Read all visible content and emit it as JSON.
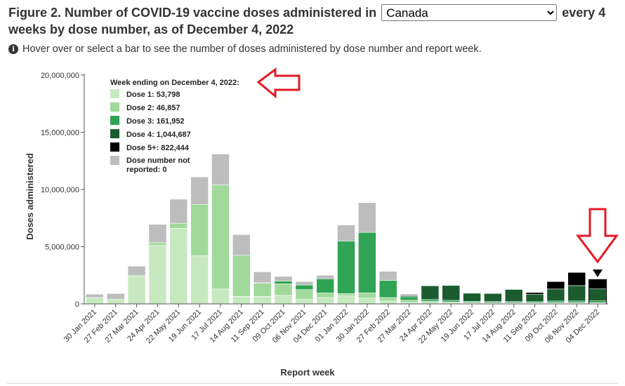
{
  "header": {
    "title_part1": "Figure 2. Number of COVID-19 vaccine doses administered in",
    "title_part2": "every 4 weeks by dose number, as of December 4, 2022",
    "region_select": {
      "selected": "Canada"
    }
  },
  "info": {
    "icon": "info-icon",
    "text": "Hover over or select a bar to see the number of doses administered by dose number and report week."
  },
  "annotations": {
    "left_arrow_icon": "red-left-arrow-icon",
    "down_arrow_icon": "red-down-arrow-icon",
    "highlight_marker_icon": "black-triangle-marker-icon",
    "arrow_color": "#e31b23"
  },
  "chart_data": {
    "type": "bar",
    "stacked": true,
    "xlabel": "Report week",
    "ylabel": "Doses administered",
    "ylim": [
      0,
      20000000
    ],
    "yticks": [
      {
        "value": 0,
        "label": "0"
      },
      {
        "value": 5000000,
        "label": "5,000,000"
      },
      {
        "value": 10000000,
        "label": "10,000,000"
      },
      {
        "value": 15000000,
        "label": "15,000,000"
      },
      {
        "value": 20000000,
        "label": "20,000,000"
      }
    ],
    "grid": false,
    "categories": [
      "30 Jan 2021",
      "27 Feb 2021",
      "27 Mar 2021",
      "24 Apr 2021",
      "22 May 2021",
      "19 Jun 2021",
      "17 Jul 2021",
      "14 Aug 2021",
      "11 Sep 2021",
      "09 Oct 2021",
      "06 Nov 2021",
      "04 Dec 2021",
      "01 Jan 2022",
      "30 Jan 2022",
      "27 Feb 2022",
      "27 Mar 2022",
      "24 Apr 2022",
      "22 May 2022",
      "19 Jun 2022",
      "17 Jul 2022",
      "14 Aug 2022",
      "11 Sep 2022",
      "09 Oct 2022",
      "06 Nov 2022",
      "04 Dec 2022"
    ],
    "series": [
      {
        "name": "Dose 1",
        "color": "#c7e9c0",
        "values": [
          550000,
          400000,
          2400000,
          5100000,
          6600000,
          4200000,
          1300000,
          650000,
          650000,
          750000,
          400000,
          550000,
          700000,
          500000,
          250000,
          120000,
          80000,
          60000,
          50000,
          50000,
          50000,
          50000,
          50000,
          50000,
          53798
        ]
      },
      {
        "name": "Dose 2",
        "color": "#a1d99b",
        "values": [
          0,
          0,
          100000,
          250000,
          450000,
          4500000,
          9100000,
          3600000,
          1150000,
          1000000,
          850000,
          400000,
          200000,
          450000,
          300000,
          200000,
          150000,
          100000,
          80000,
          60000,
          60000,
          50000,
          50000,
          50000,
          46857
        ]
      },
      {
        "name": "Dose 3",
        "color": "#31a354",
        "values": [
          0,
          0,
          0,
          0,
          0,
          0,
          0,
          0,
          50000,
          250000,
          400000,
          1250000,
          4600000,
          5300000,
          1500000,
          300000,
          150000,
          150000,
          100000,
          100000,
          100000,
          100000,
          150000,
          150000,
          161952
        ]
      },
      {
        "name": "Dose 4",
        "color": "#1a5c30",
        "values": [
          0,
          0,
          0,
          0,
          0,
          0,
          0,
          0,
          0,
          0,
          0,
          0,
          0,
          0,
          0,
          100000,
          1200000,
          1300000,
          700000,
          700000,
          1050000,
          650000,
          1050000,
          1350000,
          1044687
        ]
      },
      {
        "name": "Dose 5+",
        "color": "#000000",
        "values": [
          0,
          0,
          0,
          0,
          0,
          0,
          0,
          0,
          0,
          0,
          0,
          0,
          0,
          0,
          0,
          0,
          0,
          0,
          0,
          0,
          0,
          150000,
          650000,
          1150000,
          822444
        ]
      },
      {
        "name": "Dose number not reported",
        "color": "#bdbdbd",
        "values": [
          300000,
          500000,
          800000,
          1600000,
          2100000,
          2400000,
          2700000,
          1800000,
          950000,
          400000,
          300000,
          300000,
          1400000,
          2600000,
          800000,
          150000,
          0,
          0,
          0,
          0,
          0,
          0,
          0,
          0,
          0
        ]
      }
    ],
    "legend": {
      "placement": "top-left",
      "title": "Week ending on December 4, 2022:",
      "entries": [
        {
          "label": "Dose 1: 53,798",
          "color": "#c7e9c0"
        },
        {
          "label": "Dose 2: 46,857",
          "color": "#a1d99b"
        },
        {
          "label": "Dose 3: 161,952",
          "color": "#31a354"
        },
        {
          "label": "Dose 4: 1,044,687",
          "color": "#1a5c30"
        },
        {
          "label": "Dose 5+: 822,444",
          "color": "#000000"
        },
        {
          "label_line1": "Dose number not",
          "label_line2": "reported: 0",
          "color": "#bdbdbd"
        }
      ]
    },
    "highlighted_category": "04 Dec 2022"
  }
}
